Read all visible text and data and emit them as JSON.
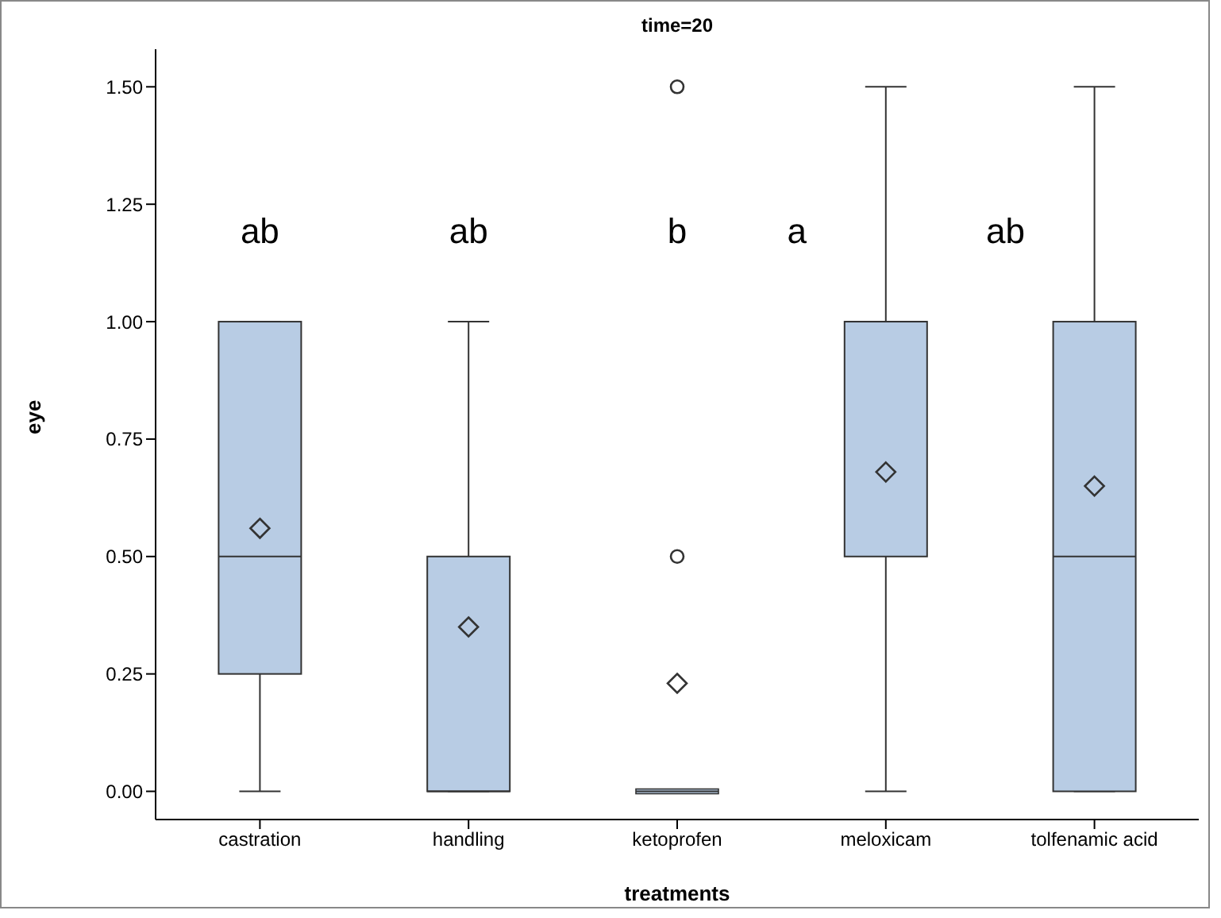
{
  "chart_data": {
    "type": "box",
    "title": "time=20",
    "xlabel": "treatments",
    "ylabel": "eye",
    "color": "#b8cce4",
    "categories": [
      "castration",
      "handling",
      "ketoprofen",
      "meloxicam",
      "tolfenamic acid"
    ],
    "boxes": [
      {
        "low": 0,
        "q1": 0.25,
        "median": 0.5,
        "q3": 1.0,
        "high": 1.0,
        "mean": 0.56
      },
      {
        "low": 0,
        "q1": 0,
        "median": 0,
        "q3": 0.5,
        "high": 1.0,
        "mean": 0.35
      },
      {
        "low": 0,
        "q1": 0,
        "median": 0,
        "q3": 0,
        "high": 0,
        "mean": 0.23,
        "outliers": [
          0.5,
          1.5
        ]
      },
      {
        "low": 0,
        "q1": 0.5,
        "median": 1.0,
        "q3": 1.0,
        "high": 1.5,
        "mean": 0.68
      },
      {
        "low": 0,
        "q1": 0,
        "median": 0.5,
        "q3": 1.0,
        "high": 1.5,
        "mean": 0.65
      }
    ],
    "ylim": [
      -0.06,
      1.58
    ],
    "yticks": [
      {
        "value": 0,
        "label": "0.00"
      },
      {
        "value": 0.25,
        "label": "0.25"
      },
      {
        "value": 0.5,
        "label": "0.50"
      },
      {
        "value": 0.75,
        "label": "0.75"
      },
      {
        "value": 1,
        "label": "1.00"
      },
      {
        "value": 1.25,
        "label": "1.25"
      },
      {
        "value": 1.5,
        "label": "1.50"
      }
    ],
    "annotations": [
      "ab",
      "ab",
      "b",
      "a",
      "ab"
    ]
  }
}
